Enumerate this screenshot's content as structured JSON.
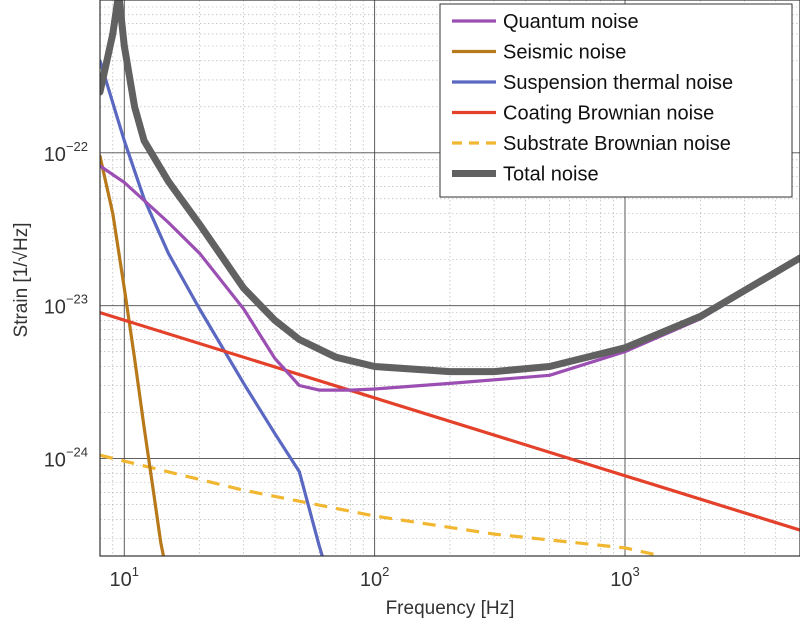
{
  "chart_data": {
    "type": "line",
    "title": "",
    "xlabel": "Frequency [Hz]",
    "ylabel": "Strain [1/√Hz]",
    "xscale": "log",
    "yscale": "log",
    "xlim": [
      8,
      5000
    ],
    "ylim": [
      2.3e-25,
      1e-21
    ],
    "grid": true,
    "legend_position": "top-right",
    "x_ticks": [
      {
        "value": 10,
        "base": "10",
        "exp": "1"
      },
      {
        "value": 100,
        "base": "10",
        "exp": "2"
      },
      {
        "value": 1000,
        "base": "10",
        "exp": "3"
      }
    ],
    "y_ticks": [
      {
        "value": 1e-22,
        "base": "10",
        "exp": "−22"
      },
      {
        "value": 1e-23,
        "base": "10",
        "exp": "−23"
      },
      {
        "value": 1e-24,
        "base": "10",
        "exp": "−24"
      }
    ],
    "series": [
      {
        "name": "Quantum noise",
        "color": "#9b4fb3",
        "style": "solid",
        "points": [
          [
            8,
            8.2e-23
          ],
          [
            10,
            6.4e-23
          ],
          [
            15,
            3.5e-23
          ],
          [
            20,
            2.2e-23
          ],
          [
            30,
            9.5e-24
          ],
          [
            40,
            4.5e-24
          ],
          [
            50,
            3e-24
          ],
          [
            60,
            2.8e-24
          ],
          [
            80,
            2.8e-24
          ],
          [
            100,
            2.85e-24
          ],
          [
            200,
            3.1e-24
          ],
          [
            500,
            3.5e-24
          ],
          [
            1000,
            5e-24
          ],
          [
            2000,
            8.2e-24
          ],
          [
            5000,
            2e-23
          ]
        ]
      },
      {
        "name": "Seismic noise",
        "color": "#b8791a",
        "style": "solid",
        "points": [
          [
            8,
            9.5e-23
          ],
          [
            9,
            4e-23
          ],
          [
            10,
            1.3e-23
          ],
          [
            11,
            4.5e-24
          ],
          [
            12,
            1.6e-24
          ],
          [
            13,
            6.5e-25
          ],
          [
            14,
            2.8e-25
          ],
          [
            14.5,
            2.1e-25
          ]
        ]
      },
      {
        "name": "Suspension thermal noise",
        "color": "#5a68c2",
        "style": "solid",
        "points": [
          [
            8,
            4e-22
          ],
          [
            10,
            1.2e-22
          ],
          [
            12,
            5e-23
          ],
          [
            15,
            2.2e-23
          ],
          [
            20,
            9.5e-24
          ],
          [
            30,
            3.1e-24
          ],
          [
            40,
            1.45e-24
          ],
          [
            50,
            8.2e-25
          ],
          [
            60,
            2.7e-25
          ],
          [
            62,
            2.25e-25
          ]
        ]
      },
      {
        "name": "Coating Brownian noise",
        "color": "#e4412b",
        "style": "solid",
        "points": [
          [
            8,
            9e-24
          ],
          [
            5000,
            3.4e-25
          ]
        ]
      },
      {
        "name": "Substrate Brownian noise",
        "color": "#f2b731",
        "style": "dashed",
        "points": [
          [
            8,
            1.05e-24
          ],
          [
            30,
            6.2e-25
          ],
          [
            100,
            4.2e-25
          ],
          [
            300,
            3.2e-25
          ],
          [
            1000,
            2.6e-25
          ],
          [
            1400,
            2.3e-25
          ]
        ]
      },
      {
        "name": "Total noise",
        "color": "#616161",
        "style": "thick",
        "points": [
          [
            8,
            2.5e-22
          ],
          [
            9,
            6e-22
          ],
          [
            9.5,
            1.1e-21
          ],
          [
            10,
            5e-22
          ],
          [
            11,
            2e-22
          ],
          [
            12,
            1.2e-22
          ],
          [
            15,
            6.5e-23
          ],
          [
            20,
            3.4e-23
          ],
          [
            30,
            1.3e-23
          ],
          [
            40,
            8e-24
          ],
          [
            50,
            6e-24
          ],
          [
            70,
            4.6e-24
          ],
          [
            100,
            4e-24
          ],
          [
            200,
            3.7e-24
          ],
          [
            300,
            3.7e-24
          ],
          [
            500,
            4e-24
          ],
          [
            1000,
            5.3e-24
          ],
          [
            2000,
            8.5e-24
          ],
          [
            5000,
            2.05e-23
          ]
        ]
      }
    ]
  }
}
